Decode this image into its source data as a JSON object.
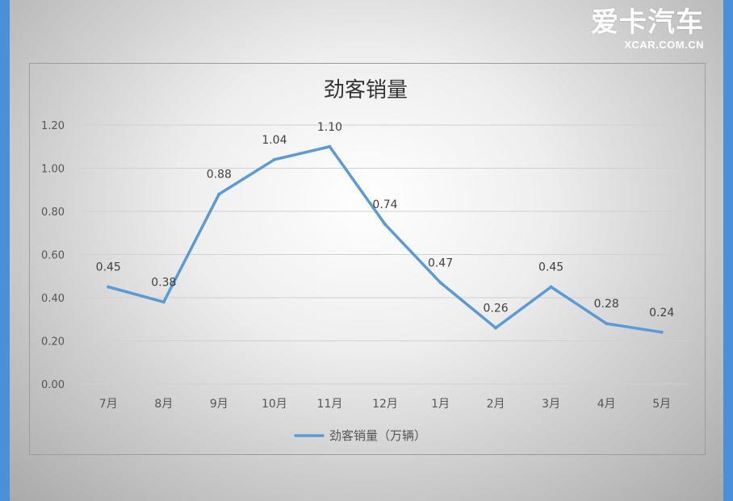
{
  "logo": {
    "text_cn": "爱卡汽车",
    "text_en": "XCAR.COM.CN"
  },
  "chart_data": {
    "type": "line",
    "title": "劲客销量",
    "categories": [
      "7月",
      "8月",
      "9月",
      "10月",
      "11月",
      "12月",
      "1月",
      "2月",
      "3月",
      "4月",
      "5月"
    ],
    "series": [
      {
        "name": "劲客销量（万辆）",
        "values": [
          0.45,
          0.38,
          0.88,
          1.04,
          1.1,
          0.74,
          0.47,
          0.26,
          0.45,
          0.28,
          0.24
        ],
        "labels": [
          "0.45",
          "0.38",
          "0.88",
          "1.04",
          "1.10",
          "0.74",
          "0.47",
          "0.26",
          "0.45",
          "0.28",
          "0.24"
        ],
        "color": "#5b9bd5"
      }
    ],
    "ylim": [
      0,
      1.2
    ],
    "yticks": [
      "0.00",
      "0.20",
      "0.40",
      "0.60",
      "0.80",
      "1.00",
      "1.20"
    ],
    "grid": true,
    "legend": "bottom",
    "xlabel": "",
    "ylabel": ""
  }
}
